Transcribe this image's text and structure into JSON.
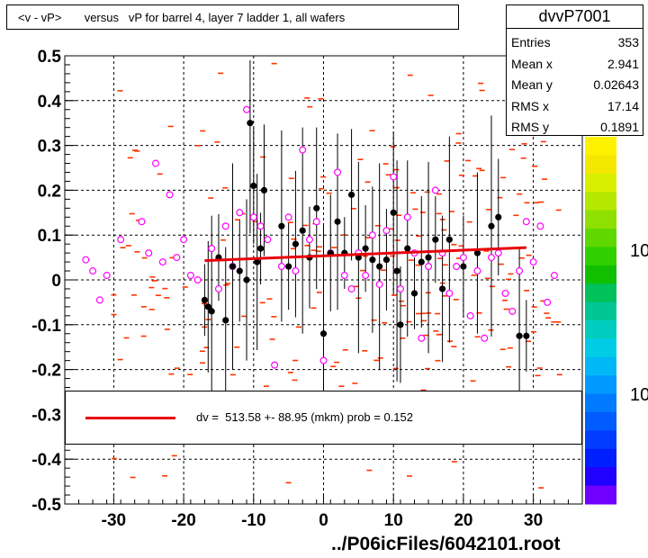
{
  "title": "<v - vP>       versus   vP for barrel 4, layer 7 ladder 1, all wafers",
  "stats": {
    "name": "dvvP7001",
    "rows": [
      {
        "label": "Entries",
        "value": "353"
      },
      {
        "label": "Mean x",
        "value": "2.941"
      },
      {
        "label": "Mean y",
        "value": "0.02643"
      },
      {
        "label": "RMS x",
        "value": "17.14"
      },
      {
        "label": "RMS y",
        "value": "0.1891"
      }
    ]
  },
  "fit_legend": "dv =  513.58 +- 88.95 (mkm) prob = 0.152",
  "filename": "../P06icFiles/6042101.root",
  "palette_labels": [
    "10",
    "10"
  ],
  "colors": {
    "fit_line": "#e8000b",
    "profile_points": "#000000",
    "hist_markers": "#ff00ff",
    "dashes": "#ff3300"
  },
  "chart_data": {
    "type": "scatter",
    "title": "<v - vP>       versus   vP for barrel 4, layer 7 ladder 1, all wafers",
    "xlim": [
      -37,
      37
    ],
    "ylim": [
      -0.5,
      0.5
    ],
    "xticks": [
      -30,
      -20,
      -10,
      0,
      10,
      20,
      30
    ],
    "yticks": [
      -0.5,
      -0.4,
      -0.3,
      -0.2,
      -0.1,
      0,
      0.1,
      0.2,
      0.3,
      0.4,
      0.5
    ],
    "grid": true,
    "fit": {
      "x": [
        -17,
        29
      ],
      "y": [
        0.043,
        0.072
      ]
    },
    "profile_points": {
      "x": [
        -17,
        -16.5,
        -16,
        -15,
        -14,
        -13,
        -12,
        -11,
        -10.5,
        -10,
        -9.5,
        -9,
        -8.5,
        -6,
        -5,
        -4,
        -3,
        -2,
        -1,
        0,
        1,
        2,
        3,
        4,
        5,
        6,
        7,
        8,
        9,
        10,
        10.5,
        11,
        12,
        13,
        14,
        15,
        16,
        17,
        18,
        20,
        22,
        24,
        25,
        28,
        29
      ],
      "y": [
        -0.045,
        -0.06,
        -0.07,
        0.05,
        -0.09,
        0.03,
        0.02,
        0.0,
        0.35,
        0.21,
        0.04,
        0.07,
        0.2,
        0.12,
        0.03,
        0.08,
        0.11,
        0.05,
        0.16,
        -0.12,
        0.06,
        0.13,
        0.06,
        0.19,
        0.05,
        0.07,
        0.045,
        0.03,
        0.045,
        0.15,
        0.02,
        -0.1,
        0.07,
        -0.03,
        0.04,
        0.05,
        0.09,
        -0.02,
        0.09,
        0.03,
        0.06,
        0.12,
        0.14,
        -0.125,
        -0.125
      ]
    },
    "hist_markers": {
      "x": [
        -34,
        -33,
        -32,
        -31,
        -29,
        -26,
        -25,
        -24,
        -23,
        -22,
        -21,
        -20,
        -19,
        -18,
        -16,
        -15,
        -14,
        -13,
        -12,
        -11,
        -10,
        -9,
        -8,
        -7,
        -6,
        -5,
        -4,
        -3,
        -2,
        -1,
        0,
        1,
        2,
        3,
        4,
        5,
        6,
        7,
        8,
        9,
        10,
        11,
        12,
        13,
        14,
        15,
        16,
        17,
        18,
        19,
        20,
        21,
        22,
        23,
        24,
        25,
        26,
        27,
        28,
        29,
        30,
        31,
        32,
        33
      ],
      "y": [
        0.045,
        0.02,
        -0.045,
        0.01,
        0.09,
        0.13,
        0.06,
        0.26,
        0.04,
        0.19,
        0.05,
        0.09,
        0.01,
        0.0,
        0.07,
        -0.02,
        0.12,
        0.03,
        0.15,
        0.38,
        0.14,
        0.12,
        0.09,
        -0.19,
        0.03,
        0.14,
        0.02,
        0.29,
        0.09,
        0.13,
        -0.18,
        0.06,
        0.24,
        0.01,
        -0.02,
        0.06,
        0.01,
        0.1,
        -0.01,
        0.11,
        0.23,
        -0.02,
        0.14,
        0.06,
        -0.13,
        0.03,
        0.2,
        0.06,
        -0.03,
        0.03,
        0.05,
        -0.08,
        0.02,
        -0.13,
        0.05,
        0.06,
        -0.03,
        -0.07,
        0.02,
        0.13,
        0.04,
        0.12,
        -0.05,
        0.01
      ]
    }
  }
}
